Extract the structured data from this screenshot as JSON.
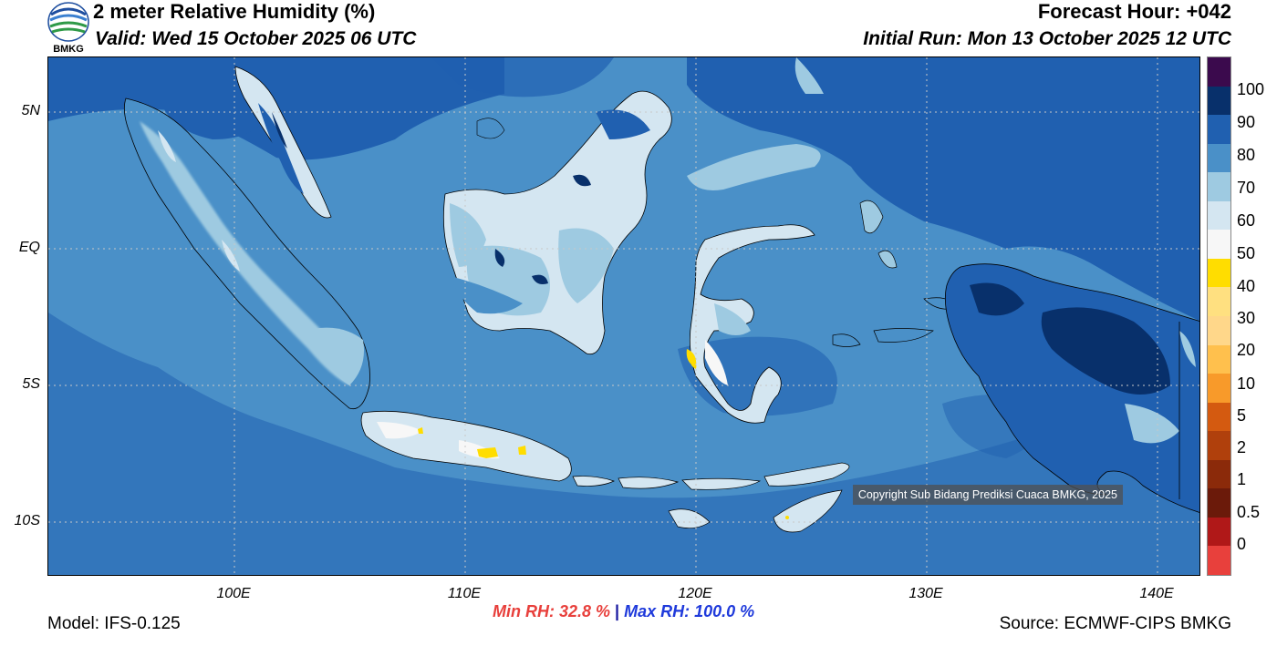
{
  "header": {
    "title": "2 meter Relative Humidity (%)",
    "valid": "Valid: Wed 15 October 2025 06 UTC",
    "forecast_hour": "Forecast Hour: +042",
    "initial_run": "Initial Run: Mon 13 October 2025 12 UTC"
  },
  "logo": {
    "text": "BMKG",
    "icon": "bmkg-logo-icon"
  },
  "map": {
    "lat_labels": [
      "5N",
      "EQ",
      "5S",
      "10S"
    ],
    "lon_labels": [
      "100E",
      "110E",
      "120E",
      "130E",
      "140E"
    ],
    "copyright": "Copyright Sub Bidang Prediksi Cuaca BMKG, 2025",
    "colors": {
      "ocean": "#4a90c8",
      "ocean_dark": "#2060b0",
      "land_light": "#9ecae1",
      "land_pale": "#d4e6f1",
      "very_humid": "#08306b",
      "dry_yellow": "#ffe000"
    }
  },
  "colorbar": {
    "labels": [
      "100",
      "90",
      "80",
      "70",
      "60",
      "50",
      "40",
      "30",
      "20",
      "10",
      "5",
      "2",
      "1",
      "0.5",
      "0"
    ],
    "colors": [
      "#3b0a4d",
      "#08306b",
      "#2060b0",
      "#4a90c8",
      "#9ecae1",
      "#d4e6f1",
      "#f7f7f7",
      "#ffdd00",
      "#ffe080",
      "#ffd78a",
      "#ffc04d",
      "#f89a2a",
      "#d45a10",
      "#b0400c",
      "#8b2a0a",
      "#6b1a0a",
      "#b01818",
      "#e8403c"
    ]
  },
  "footer": {
    "min_rh": "Min RH:  32.8 %",
    "separator": "|",
    "max_rh": "Max RH: 100.0 %",
    "model": "Model: IFS-0.125",
    "source": "Source: ECMWF-CIPS BMKG"
  }
}
